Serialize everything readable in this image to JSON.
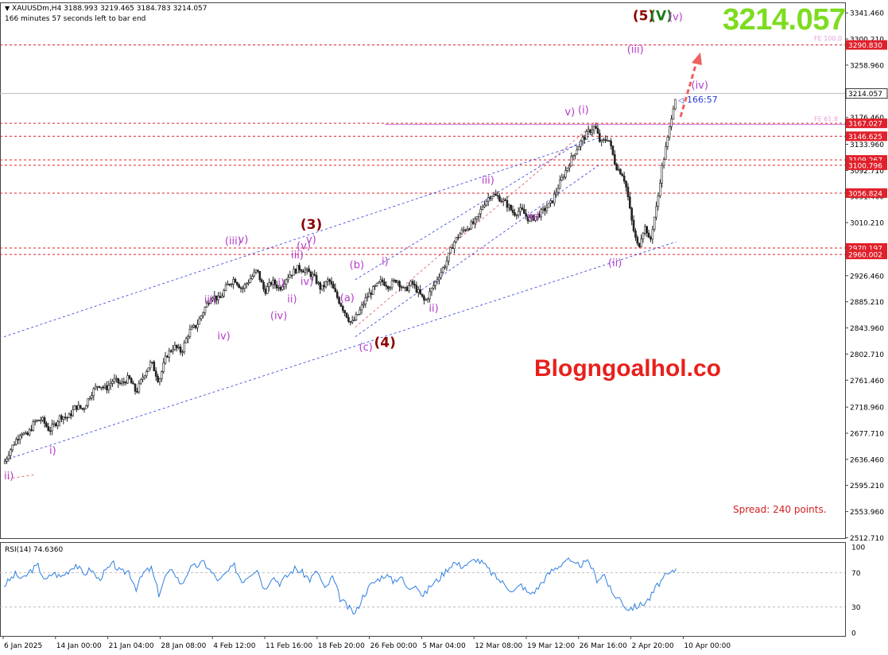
{
  "header": {
    "symbol_line": "XAUUSDm,H4  3188.993 3219.465 3184.783 3214.057",
    "countdown": "166 minutes 57 seconds left to bar end"
  },
  "big_price": "3214.057",
  "watermark": "Blogngoalhol.co",
  "spread": "Spread: 240 points.",
  "timer_label": "166:57",
  "colors": {
    "candle": "#222222",
    "level": "#e0202a",
    "channel": "#2a3bd8",
    "wave_minor": "#b43cc8",
    "wave_major": "#8b0000",
    "wave_green": "#1a7a1a",
    "rsi": "#2f7fe0",
    "arrow": "#f06060"
  },
  "chart_data": {
    "type": "candlestick",
    "symbol": "XAUUSDm",
    "timeframe": "H4",
    "last_price": 3214.057,
    "ohlc_header": {
      "open": 3188.993,
      "high": 3219.465,
      "low": 3184.783,
      "close": 3214.057
    },
    "y_range": [
      2512,
      3358
    ],
    "y_ticks": [
      "3341.460",
      "3300.210",
      "3258.960",
      "3217.710",
      "3176.460",
      "3133.960",
      "3092.710",
      "3051.460",
      "3010.210",
      "2968.960",
      "2926.460",
      "2885.210",
      "2843.960",
      "2802.710",
      "2761.460",
      "2718.960",
      "2677.710",
      "2636.460",
      "2595.210",
      "2553.960",
      "2512.710"
    ],
    "x_ticks": [
      "6 Jan 2025",
      "14 Jan 00:00",
      "21 Jan 04:00",
      "28 Jan 08:00",
      "4 Feb 12:00",
      "11 Feb 16:00",
      "18 Feb 20:00",
      "26 Feb 00:00",
      "5 Mar 04:00",
      "12 Mar 08:00",
      "19 Mar 12:00",
      "26 Mar 16:00",
      "2 Apr 20:00",
      "10 Apr 00:00"
    ],
    "close_path": [
      [
        0,
        2630
      ],
      [
        3,
        2650
      ],
      [
        6,
        2665
      ],
      [
        9,
        2680
      ],
      [
        12,
        2672
      ],
      [
        16,
        2695
      ],
      [
        20,
        2700
      ],
      [
        24,
        2682
      ],
      [
        27,
        2692
      ],
      [
        30,
        2705
      ],
      [
        34,
        2702
      ],
      [
        38,
        2720
      ],
      [
        42,
        2716
      ],
      [
        46,
        2740
      ],
      [
        50,
        2755
      ],
      [
        54,
        2748
      ],
      [
        58,
        2762
      ],
      [
        62,
        2755
      ],
      [
        66,
        2765
      ],
      [
        70,
        2742
      ],
      [
        74,
        2770
      ],
      [
        78,
        2790
      ],
      [
        82,
        2760
      ],
      [
        86,
        2800
      ],
      [
        90,
        2815
      ],
      [
        94,
        2806
      ],
      [
        98,
        2838
      ],
      [
        102,
        2848
      ],
      [
        106,
        2873
      ],
      [
        110,
        2896
      ],
      [
        114,
        2888
      ],
      [
        118,
        2910
      ],
      [
        122,
        2922
      ],
      [
        126,
        2905
      ],
      [
        130,
        2920
      ],
      [
        134,
        2935
      ],
      [
        138,
        2901
      ],
      [
        142,
        2917
      ],
      [
        146,
        2906
      ],
      [
        150,
        2925
      ],
      [
        153,
        2932
      ],
      [
        156,
        2939
      ],
      [
        160,
        2934
      ],
      [
        164,
        2925
      ],
      [
        168,
        2905
      ],
      [
        172,
        2920
      ],
      [
        176,
        2895
      ],
      [
        180,
        2872
      ],
      [
        184,
        2850
      ],
      [
        188,
        2868
      ],
      [
        192,
        2892
      ],
      [
        196,
        2906
      ],
      [
        200,
        2918
      ],
      [
        204,
        2910
      ],
      [
        208,
        2921
      ],
      [
        212,
        2902
      ],
      [
        216,
        2915
      ],
      [
        220,
        2898
      ],
      [
        223,
        2885
      ],
      [
        226,
        2902
      ],
      [
        230,
        2925
      ],
      [
        234,
        2946
      ],
      [
        238,
        2978
      ],
      [
        242,
        2995
      ],
      [
        246,
        3004
      ],
      [
        250,
        3012
      ],
      [
        254,
        3040
      ],
      [
        258,
        3055
      ],
      [
        262,
        3050
      ],
      [
        266,
        3040
      ],
      [
        270,
        3025
      ],
      [
        274,
        3030
      ],
      [
        278,
        3015
      ],
      [
        282,
        3020
      ],
      [
        286,
        3030
      ],
      [
        290,
        3042
      ],
      [
        294,
        3070
      ],
      [
        298,
        3095
      ],
      [
        302,
        3120
      ],
      [
        306,
        3140
      ],
      [
        310,
        3155
      ],
      [
        313,
        3162
      ],
      [
        316,
        3135
      ],
      [
        320,
        3145
      ],
      [
        324,
        3100
      ],
      [
        328,
        3085
      ],
      [
        330,
        3060
      ],
      [
        332,
        3020
      ],
      [
        334,
        2990
      ],
      [
        336,
        2970
      ],
      [
        338,
        2995
      ],
      [
        340,
        3005
      ],
      [
        342,
        2975
      ],
      [
        344,
        3012
      ],
      [
        346,
        3040
      ],
      [
        348,
        3090
      ],
      [
        350,
        3120
      ],
      [
        352,
        3150
      ],
      [
        354,
        3188
      ],
      [
        356,
        3214
      ]
    ],
    "horizontal_levels": [
      {
        "value": 3290.83,
        "label": "3290.830",
        "style": "dashed"
      },
      {
        "value": 3214.057,
        "label": "3214.057",
        "style": "solid"
      },
      {
        "value": 3167.027,
        "label": "3167.027",
        "style": "dashed"
      },
      {
        "value": 3146.625,
        "label": "3146.625",
        "style": "dashed"
      },
      {
        "value": 3109.267,
        "label": "3109.267",
        "style": "dashed"
      },
      {
        "value": 3100.796,
        "label": "3100.796",
        "style": "dashed"
      },
      {
        "value": 3056.824,
        "label": "3056.824",
        "style": "dashed"
      },
      {
        "value": 2970.197,
        "label": "2970.197",
        "style": "dashed"
      },
      {
        "value": 2960.002,
        "label": "2960.002",
        "style": "dashed"
      }
    ],
    "fe_labels": [
      {
        "text": "FE 100.0",
        "value": 3300.21
      },
      {
        "text": "FE 61.8",
        "value": 3173
      }
    ],
    "wave_labels": [
      {
        "text": "(5)",
        "color": "major",
        "t": 333,
        "v": 3330,
        "size": 17
      },
      {
        "text": "(V)",
        "color": "green",
        "t": 342,
        "v": 3330,
        "size": 17
      },
      {
        "text": "(v)",
        "color": "minor",
        "t": 352,
        "v": 3330,
        "size": 13
      },
      {
        "text": "(iii)",
        "color": "minor",
        "t": 330,
        "v": 3278,
        "size": 13
      },
      {
        "text": "(iv)",
        "color": "minor",
        "t": 364,
        "v": 3222,
        "size": 13
      },
      {
        "text": "v)",
        "color": "minor",
        "t": 297,
        "v": 3180,
        "size": 13
      },
      {
        "text": "(i)",
        "color": "minor",
        "t": 304,
        "v": 3183,
        "size": 13
      },
      {
        "text": "iii)",
        "color": "minor",
        "t": 253,
        "v": 3072,
        "size": 13
      },
      {
        "text": "iv)",
        "color": "minor",
        "t": 277,
        "v": 3015,
        "size": 13
      },
      {
        "text": "(ii)",
        "color": "minor",
        "t": 320,
        "v": 2941,
        "size": 13
      },
      {
        "text": "(3)",
        "color": "major",
        "t": 157,
        "v": 3000,
        "size": 17
      },
      {
        "text": "(iii)",
        "color": "minor",
        "t": 117,
        "v": 2976,
        "size": 13
      },
      {
        "text": "v)",
        "color": "minor",
        "t": 124,
        "v": 2978,
        "size": 13
      },
      {
        "text": "iii)",
        "color": "minor",
        "t": 152,
        "v": 2954,
        "size": 13
      },
      {
        "text": "(v)",
        "color": "minor",
        "t": 155,
        "v": 2968,
        "size": 13
      },
      {
        "text": "v)",
        "color": "minor",
        "t": 160,
        "v": 2978,
        "size": 13
      },
      {
        "text": "iv)",
        "color": "minor",
        "t": 157,
        "v": 2912,
        "size": 13
      },
      {
        "text": "i)",
        "color": "minor",
        "t": 145,
        "v": 2910,
        "size": 13
      },
      {
        "text": "ii)",
        "color": "minor",
        "t": 150,
        "v": 2884,
        "size": 13
      },
      {
        "text": "(iv)",
        "color": "minor",
        "t": 141,
        "v": 2858,
        "size": 13
      },
      {
        "text": "iii)",
        "color": "minor",
        "t": 106,
        "v": 2883,
        "size": 13
      },
      {
        "text": "iv)",
        "color": "minor",
        "t": 113,
        "v": 2826,
        "size": 13
      },
      {
        "text": "(b)",
        "color": "minor",
        "t": 183,
        "v": 2938,
        "size": 13
      },
      {
        "text": "(a)",
        "color": "minor",
        "t": 178,
        "v": 2886,
        "size": 13
      },
      {
        "text": "i)",
        "color": "minor",
        "t": 200,
        "v": 2944,
        "size": 13
      },
      {
        "text": "ii)",
        "color": "minor",
        "t": 225,
        "v": 2870,
        "size": 13
      },
      {
        "text": "(c)",
        "color": "minor",
        "t": 188,
        "v": 2808,
        "size": 13
      },
      {
        "text": "(4)",
        "color": "major",
        "t": 196,
        "v": 2814,
        "size": 17
      },
      {
        "text": "i)",
        "color": "minor",
        "t": 24,
        "v": 2645,
        "size": 13
      },
      {
        "text": "ii)",
        "color": "minor",
        "t": 0,
        "v": 2605,
        "size": 13
      }
    ],
    "rsi": {
      "label": "RSI(14) 74.6360",
      "value": 74.636,
      "ticks": [
        "100",
        "70",
        "30",
        "0"
      ],
      "levels": [
        70,
        30
      ],
      "path": [
        [
          0,
          55
        ],
        [
          6,
          68
        ],
        [
          10,
          62
        ],
        [
          14,
          72
        ],
        [
          18,
          78
        ],
        [
          22,
          60
        ],
        [
          26,
          70
        ],
        [
          30,
          65
        ],
        [
          34,
          72
        ],
        [
          38,
          80
        ],
        [
          42,
          68
        ],
        [
          46,
          74
        ],
        [
          50,
          62
        ],
        [
          54,
          72
        ],
        [
          58,
          80
        ],
        [
          62,
          70
        ],
        [
          66,
          72
        ],
        [
          70,
          52
        ],
        [
          74,
          70
        ],
        [
          78,
          75
        ],
        [
          82,
          45
        ],
        [
          86,
          68
        ],
        [
          90,
          72
        ],
        [
          94,
          55
        ],
        [
          98,
          74
        ],
        [
          102,
          78
        ],
        [
          106,
          82
        ],
        [
          110,
          70
        ],
        [
          114,
          60
        ],
        [
          118,
          70
        ],
        [
          122,
          78
        ],
        [
          126,
          60
        ],
        [
          130,
          68
        ],
        [
          134,
          75
        ],
        [
          138,
          50
        ],
        [
          142,
          66
        ],
        [
          146,
          58
        ],
        [
          150,
          66
        ],
        [
          154,
          75
        ],
        [
          158,
          70
        ],
        [
          162,
          62
        ],
        [
          166,
          72
        ],
        [
          170,
          50
        ],
        [
          174,
          65
        ],
        [
          178,
          40
        ],
        [
          182,
          30
        ],
        [
          186,
          22
        ],
        [
          190,
          42
        ],
        [
          194,
          55
        ],
        [
          198,
          62
        ],
        [
          202,
          68
        ],
        [
          206,
          60
        ],
        [
          210,
          66
        ],
        [
          214,
          50
        ],
        [
          218,
          58
        ],
        [
          222,
          42
        ],
        [
          226,
          55
        ],
        [
          230,
          62
        ],
        [
          234,
          72
        ],
        [
          238,
          82
        ],
        [
          242,
          78
        ],
        [
          246,
          80
        ],
        [
          250,
          86
        ],
        [
          254,
          80
        ],
        [
          258,
          70
        ],
        [
          262,
          62
        ],
        [
          266,
          55
        ],
        [
          270,
          48
        ],
        [
          274,
          56
        ],
        [
          278,
          45
        ],
        [
          282,
          50
        ],
        [
          286,
          62
        ],
        [
          290,
          72
        ],
        [
          294,
          78
        ],
        [
          298,
          86
        ],
        [
          302,
          78
        ],
        [
          306,
          80
        ],
        [
          310,
          82
        ],
        [
          314,
          62
        ],
        [
          318,
          68
        ],
        [
          322,
          45
        ],
        [
          326,
          40
        ],
        [
          330,
          28
        ],
        [
          334,
          30
        ],
        [
          338,
          33
        ],
        [
          342,
          40
        ],
        [
          346,
          55
        ],
        [
          350,
          65
        ],
        [
          354,
          70
        ],
        [
          356,
          75
        ]
      ]
    }
  }
}
